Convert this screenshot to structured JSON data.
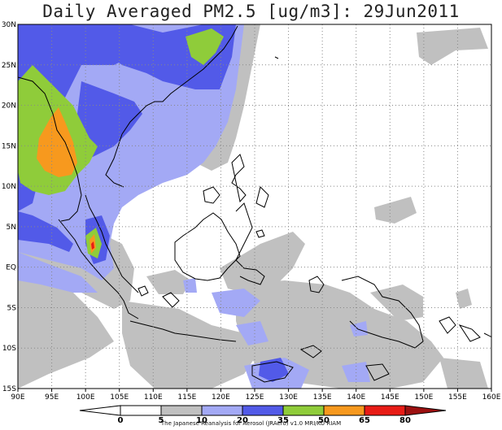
{
  "title": "Daily Averaged PM2.5 [ug/m3]: 29Jun2011",
  "credit": "The Japanese Reanalysis for Aerosol (JRAero) v1.0 MRI/KU RIAM",
  "chart_data": {
    "type": "heatmap",
    "title": "Daily Averaged PM2.5 [ug/m3]: 29Jun2011",
    "x_ticks": [
      "90E",
      "95E",
      "100E",
      "105E",
      "110E",
      "115E",
      "120E",
      "125E",
      "130E",
      "135E",
      "140E",
      "145E",
      "150E",
      "155E",
      "160E"
    ],
    "y_ticks": [
      "30N",
      "25N",
      "20N",
      "15N",
      "10N",
      "5N",
      "EQ",
      "5S",
      "10S",
      "15S"
    ],
    "xlim": [
      90,
      160
    ],
    "ylim": [
      -15,
      30
    ],
    "grid": true,
    "colorbar": {
      "levels": [
        "0",
        "5",
        "10",
        "20",
        "35",
        "50",
        "65",
        "80"
      ],
      "colors": [
        "#ffffff",
        "#ffffff",
        "#c0c0c0",
        "#a3a9f5",
        "#525ae8",
        "#8fcc3a",
        "#f7991e",
        "#e81c16",
        "#9c1010"
      ]
    }
  }
}
